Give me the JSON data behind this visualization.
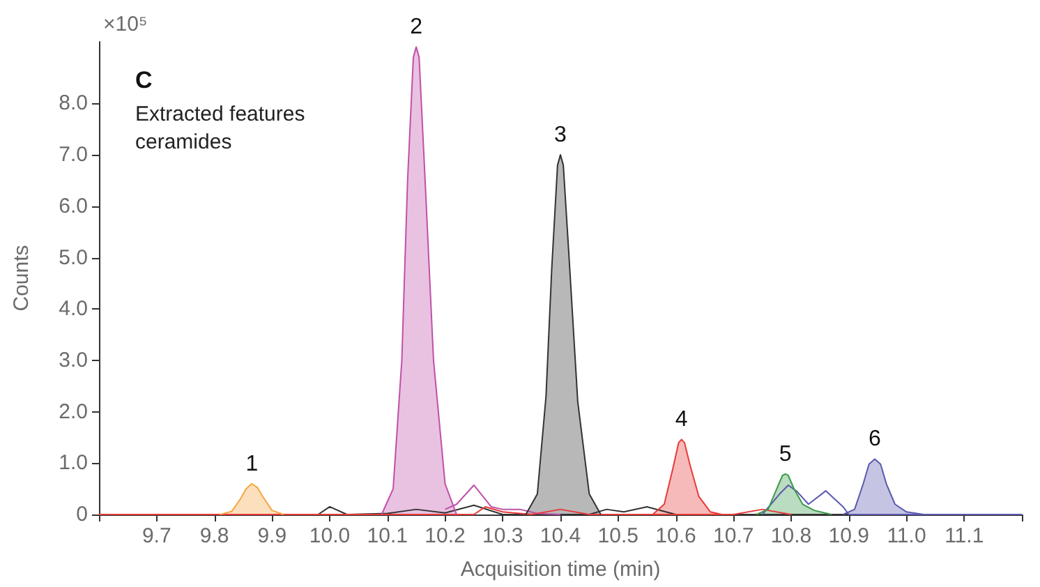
{
  "chart_data": {
    "type": "area",
    "title": "C",
    "subtitle": "Extracted features ceramides",
    "xlabel": "Acquisition time (min)",
    "ylabel": "Counts",
    "annotations": [
      "×10⁵",
      {
        "text": "1",
        "x": 9.865,
        "y": 0.6
      },
      {
        "text": "2",
        "x": 10.15,
        "y": 9.1
      },
      {
        "text": "3",
        "x": 10.4,
        "y": 7.0
      },
      {
        "text": "4",
        "x": 10.61,
        "y": 1.46
      },
      {
        "text": "5",
        "x": 10.79,
        "y": 0.79
      },
      {
        "text": "6",
        "x": 10.945,
        "y": 1.08
      }
    ],
    "xlim": [
      9.6,
      11.2
    ],
    "xticks": [
      {
        "value": 9.6,
        "label": null
      },
      9.7,
      9.8,
      9.9,
      {
        "value": 10,
        "label": "10.0"
      },
      10.1,
      10.2,
      10.3,
      10.4,
      10.5,
      10.6,
      10.7,
      10.8,
      10.9,
      {
        "value": 11,
        "label": "11.0"
      },
      11.1,
      {
        "value": 11.2,
        "label": null
      }
    ],
    "ylim": [
      0,
      9.2
    ],
    "yticks": [
      0,
      {
        "value": 1,
        "label": "1.0"
      },
      {
        "value": 2,
        "label": "2.0"
      },
      {
        "value": 3,
        "label": "3.0"
      },
      {
        "value": 4,
        "label": "4.0"
      },
      {
        "value": 5,
        "label": "5.0"
      },
      {
        "value": 6,
        "label": "6.0"
      },
      {
        "value": 7,
        "label": "7.0"
      },
      {
        "value": 8,
        "label": "8.0"
      }
    ],
    "marker": "none",
    "series": [
      {
        "type": "line",
        "color": "#333333",
        "x": [
          9.6,
          9.98,
          10.0,
          10.03,
          10.1,
          10.15,
          10.2,
          10.25,
          10.3,
          10.45,
          10.48,
          10.51,
          10.55,
          10.6,
          11.2
        ],
        "values": [
          0,
          0,
          0.15,
          0,
          0.02,
          0.1,
          0.03,
          0.18,
          0,
          0,
          0.1,
          0.05,
          0.15,
          0,
          0
        ]
      },
      {
        "type": "line",
        "color": "#c050a8",
        "x": [
          10.2,
          10.22,
          10.25,
          10.28,
          10.3,
          10.33,
          10.36,
          10.4
        ],
        "values": [
          0.1,
          0.2,
          0.57,
          0.15,
          0.1,
          0.1,
          0.02,
          0
        ]
      },
      {
        "type": "line",
        "color": "#e83a3a",
        "x": [
          9.6,
          10.25,
          10.27,
          10.3,
          10.35,
          10.4,
          10.45,
          10.7,
          10.75,
          10.8
        ],
        "values": [
          0,
          0,
          0.15,
          0.05,
          0,
          0.1,
          0,
          0,
          0.1,
          0
        ]
      },
      {
        "type": "line",
        "color": "#5a5ab0",
        "x": [
          10.75,
          10.78,
          10.795,
          10.81,
          10.83,
          10.86,
          10.89,
          10.9,
          11.2
        ],
        "values": [
          0,
          0.4,
          0.57,
          0.45,
          0.2,
          0.46,
          0.15,
          0,
          0
        ]
      },
      {
        "color": "#f5a742",
        "x": [
          9.81,
          9.83,
          9.845,
          9.855,
          9.865,
          9.875,
          9.885,
          9.9,
          9.92
        ],
        "values": [
          0,
          0.06,
          0.3,
          0.5,
          0.6,
          0.52,
          0.33,
          0.08,
          0
        ]
      },
      {
        "color": "#c050a8",
        "x": [
          10.09,
          10.11,
          10.125,
          10.135,
          10.145,
          10.15,
          10.155,
          10.165,
          10.18,
          10.2,
          10.22
        ],
        "values": [
          0,
          0.5,
          3.0,
          6.5,
          8.9,
          9.1,
          8.9,
          6.6,
          3.0,
          0.6,
          0
        ]
      },
      {
        "color": "#333333",
        "x": [
          10.34,
          10.36,
          10.375,
          10.385,
          10.395,
          10.4,
          10.405,
          10.415,
          10.43,
          10.45,
          10.47
        ],
        "values": [
          0,
          0.4,
          2.3,
          4.8,
          6.8,
          7.0,
          6.8,
          5.0,
          2.2,
          0.4,
          0
        ]
      },
      {
        "color": "#e83a3a",
        "x": [
          10.56,
          10.58,
          10.595,
          10.605,
          10.61,
          10.615,
          10.625,
          10.64,
          10.66,
          10.68
        ],
        "values": [
          0,
          0.2,
          0.9,
          1.4,
          1.46,
          1.4,
          0.95,
          0.35,
          0.05,
          0
        ]
      },
      {
        "color": "#3a9a4a",
        "x": [
          10.74,
          10.76,
          10.775,
          10.785,
          10.79,
          10.795,
          10.805,
          10.82,
          10.84,
          10.87
        ],
        "values": [
          0,
          0.1,
          0.5,
          0.76,
          0.79,
          0.76,
          0.5,
          0.2,
          0.08,
          0
        ]
      },
      {
        "color": "#5a5ab0",
        "x": [
          10.89,
          10.91,
          10.925,
          10.935,
          10.945,
          10.955,
          10.965,
          10.98,
          11.0,
          11.03
        ],
        "values": [
          0,
          0.1,
          0.6,
          0.98,
          1.08,
          0.98,
          0.6,
          0.2,
          0.05,
          0
        ]
      }
    ]
  }
}
